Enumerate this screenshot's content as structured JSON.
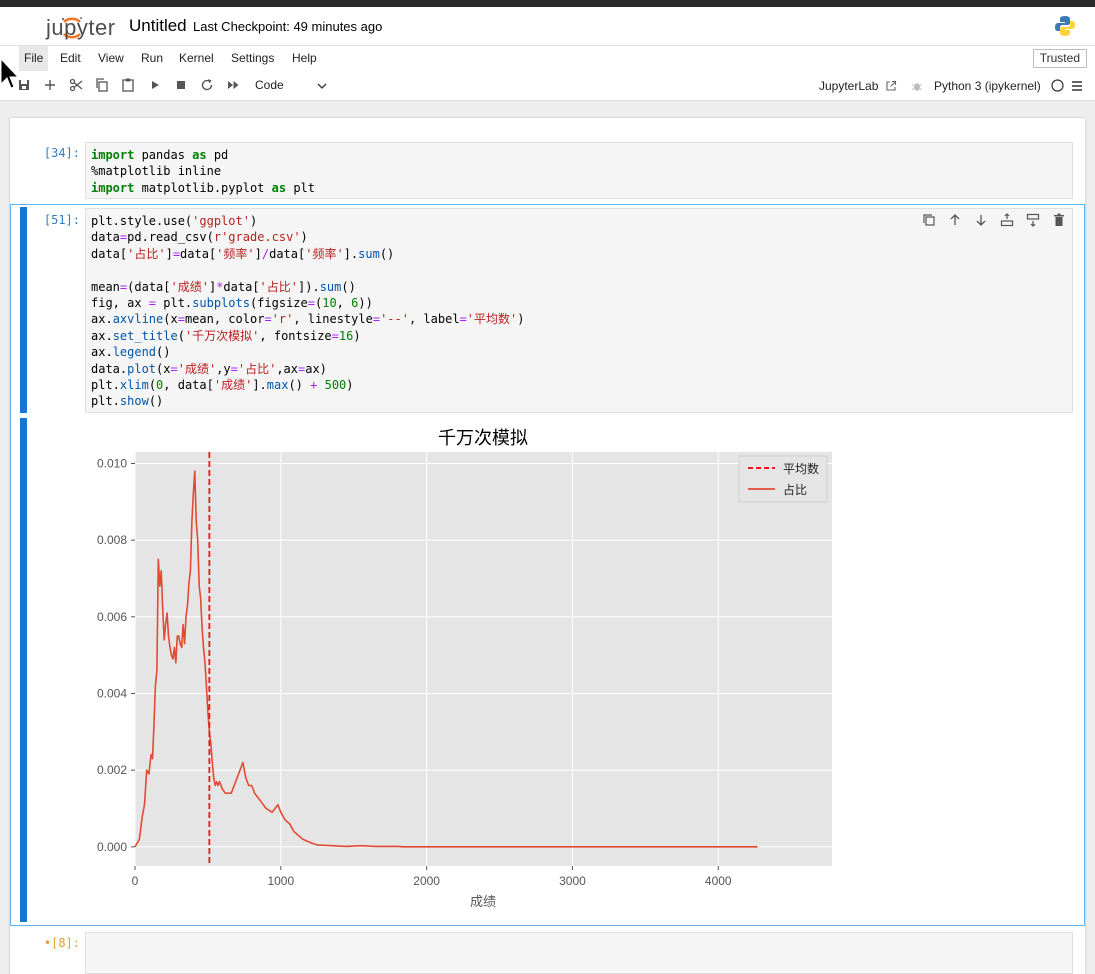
{
  "header": {
    "logo_text": "jupyter",
    "notebook_title": "Untitled",
    "checkpoint": "Last Checkpoint: 49 minutes ago"
  },
  "menu": {
    "items": [
      "File",
      "Edit",
      "View",
      "Run",
      "Kernel",
      "Settings",
      "Help"
    ],
    "trusted": "Trusted"
  },
  "toolbar": {
    "cell_type": "Code",
    "jupyterlab_link": "JupyterLab",
    "kernel": "Python 3 (ipykernel)"
  },
  "cells": [
    {
      "prompt": "[34]:",
      "code": [
        "import pandas as pd",
        "%matplotlib inline",
        "import matplotlib.pyplot as plt"
      ]
    },
    {
      "prompt": "[51]:",
      "code": [
        "plt.style.use('ggplot')",
        "data=pd.read_csv(r'grade.csv')",
        "data['占比']=data['频率']/data['频率'].sum()",
        "",
        "mean=(data['成绩']*data['占比']).sum()",
        "fig, ax = plt.subplots(figsize=(10, 6))",
        "ax.axvline(x=mean, color='r', linestyle='--', label='平均数')",
        "ax.set_title('千万次模拟', fontsize=16)",
        "ax.legend()",
        "data.plot(x='成绩',y='占比',ax=ax)",
        "plt.xlim(0, data['成绩'].max() + 500)",
        "plt.show()"
      ]
    },
    {
      "prompt": "•[8]:",
      "code": []
    }
  ],
  "chart_data": {
    "type": "line",
    "title": "千万次模拟",
    "xlabel": "成绩",
    "ylabel": "",
    "xlim": [
      0,
      4780
    ],
    "ylim": [
      -0.0005,
      0.0103
    ],
    "xticks": [
      0,
      1000,
      2000,
      3000,
      4000
    ],
    "yticks": [
      0.0,
      0.002,
      0.004,
      0.006,
      0.008,
      0.01
    ],
    "ytick_labels": [
      "0.000",
      "0.002",
      "0.004",
      "0.006",
      "0.008",
      "0.010"
    ],
    "legend_position": "top-right",
    "grid": true,
    "axvline": {
      "x": 510,
      "name": "平均数",
      "color": "#e41a1c",
      "style": "dashed"
    },
    "series": [
      {
        "name": "占比",
        "color": "#e24a33",
        "x": [
          0,
          30,
          50,
          65,
          80,
          95,
          110,
          120,
          130,
          140,
          150,
          160,
          170,
          180,
          190,
          200,
          210,
          220,
          230,
          240,
          250,
          260,
          270,
          280,
          290,
          300,
          310,
          320,
          330,
          340,
          350,
          360,
          370,
          380,
          390,
          400,
          410,
          420,
          430,
          440,
          450,
          460,
          470,
          480,
          490,
          500,
          510,
          520,
          530,
          540,
          550,
          560,
          570,
          580,
          590,
          600,
          620,
          640,
          660,
          680,
          700,
          720,
          740,
          760,
          780,
          800,
          820,
          840,
          860,
          880,
          900,
          920,
          940,
          960,
          980,
          1000,
          1030,
          1060,
          1090,
          1120,
          1150,
          1180,
          1210,
          1250,
          1300,
          1350,
          1400,
          1450,
          1500,
          1550,
          1600,
          1650,
          1700,
          1750,
          1800,
          1850,
          1900,
          1950,
          2000,
          2200,
          2400,
          2600,
          2800,
          3000,
          3200,
          3400,
          3600,
          3800,
          4000,
          4270
        ],
        "values": [
          0.0,
          0.0002,
          0.0008,
          0.0011,
          0.002,
          0.0019,
          0.0024,
          0.0023,
          0.0032,
          0.0042,
          0.0046,
          0.0075,
          0.0068,
          0.0072,
          0.0062,
          0.0054,
          0.0058,
          0.0061,
          0.0055,
          0.0052,
          0.005,
          0.0049,
          0.0052,
          0.0048,
          0.0055,
          0.0055,
          0.0053,
          0.0052,
          0.0058,
          0.0053,
          0.006,
          0.0063,
          0.0069,
          0.0072,
          0.0085,
          0.0092,
          0.0098,
          0.0085,
          0.008,
          0.0068,
          0.0065,
          0.0057,
          0.0052,
          0.0048,
          0.0042,
          0.0035,
          0.003,
          0.0027,
          0.0022,
          0.0018,
          0.0016,
          0.0017,
          0.0016,
          0.0017,
          0.0016,
          0.0015,
          0.0014,
          0.0014,
          0.0014,
          0.0016,
          0.0018,
          0.002,
          0.0022,
          0.0018,
          0.0016,
          0.0016,
          0.0014,
          0.0013,
          0.0012,
          0.0011,
          0.001,
          0.00095,
          0.0009,
          0.001,
          0.0011,
          0.0009,
          0.0007,
          0.0006,
          0.0004,
          0.0003,
          0.0002,
          0.00015,
          0.0001,
          5e-05,
          4e-05,
          3e-05,
          2e-05,
          1e-05,
          2e-05,
          3e-05,
          2e-05,
          1e-05,
          1e-05,
          1e-05,
          1e-05,
          0.0,
          0.0,
          0.0,
          0.0,
          0.0,
          0.0,
          0.0,
          0.0,
          0.0,
          0.0,
          0.0,
          0.0,
          0.0,
          0.0,
          0.0
        ]
      }
    ]
  }
}
